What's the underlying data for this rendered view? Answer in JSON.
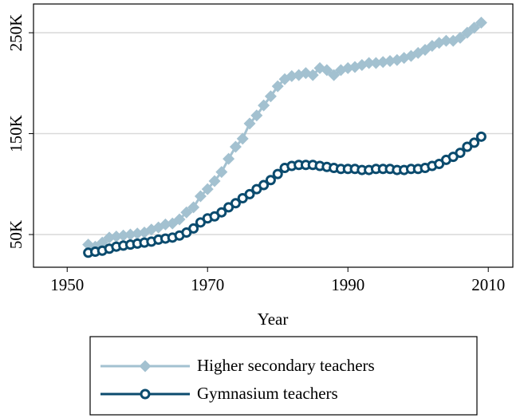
{
  "chart_data": {
    "type": "line",
    "x_label": "Year",
    "x": [
      1953,
      1954,
      1955,
      1956,
      1957,
      1958,
      1959,
      1960,
      1961,
      1962,
      1963,
      1964,
      1965,
      1966,
      1967,
      1968,
      1969,
      1970,
      1971,
      1972,
      1973,
      1974,
      1975,
      1976,
      1977,
      1978,
      1979,
      1980,
      1981,
      1982,
      1983,
      1984,
      1985,
      1986,
      1987,
      1988,
      1989,
      1990,
      1991,
      1992,
      1993,
      1994,
      1995,
      1996,
      1997,
      1998,
      1999,
      2000,
      2001,
      2002,
      2003,
      2004,
      2005,
      2006,
      2007,
      2008,
      2009
    ],
    "series": [
      {
        "name": "Higher secondary teachers",
        "color": "#a3c1d0",
        "marker": "diamond",
        "values": [
          40000,
          38000,
          42000,
          47000,
          48000,
          49000,
          50000,
          51000,
          52000,
          55000,
          57000,
          60000,
          61000,
          65000,
          72000,
          77000,
          88000,
          95000,
          103000,
          112000,
          125000,
          137000,
          145000,
          160000,
          168000,
          178000,
          187000,
          197000,
          204000,
          207000,
          208000,
          210000,
          208000,
          215000,
          213000,
          208000,
          213000,
          215000,
          216000,
          218000,
          220000,
          220000,
          221000,
          222000,
          223000,
          225000,
          227000,
          230000,
          233000,
          237000,
          240000,
          242000,
          242000,
          245000,
          250000,
          255000,
          260000
        ]
      },
      {
        "name": "Gymnasium teachers",
        "color": "#0b4b6e",
        "marker": "circle",
        "values": [
          32000,
          33000,
          34000,
          36000,
          38000,
          39000,
          40000,
          41000,
          42000,
          43000,
          45000,
          46000,
          47000,
          49000,
          52000,
          56000,
          62000,
          66000,
          68000,
          72000,
          77000,
          81000,
          86000,
          90000,
          95000,
          99000,
          104000,
          110000,
          116000,
          118000,
          119000,
          119000,
          119000,
          118000,
          117000,
          116000,
          115000,
          115000,
          115000,
          114000,
          114000,
          115000,
          115000,
          115000,
          114000,
          114000,
          115000,
          115000,
          116000,
          118000,
          120000,
          124000,
          127000,
          131000,
          137000,
          141000,
          147000
        ]
      }
    ],
    "xlim": [
      1945.2,
      2013.5
    ],
    "xticks": [
      1950,
      1970,
      1990,
      2010
    ],
    "ylim": [
      17600,
      278500
    ],
    "yticks": [
      {
        "value": 50000,
        "label": "50K"
      },
      {
        "value": 150000,
        "label": "150K"
      },
      {
        "value": 250000,
        "label": "250K"
      }
    ],
    "grid": true,
    "legend": "bottom"
  }
}
